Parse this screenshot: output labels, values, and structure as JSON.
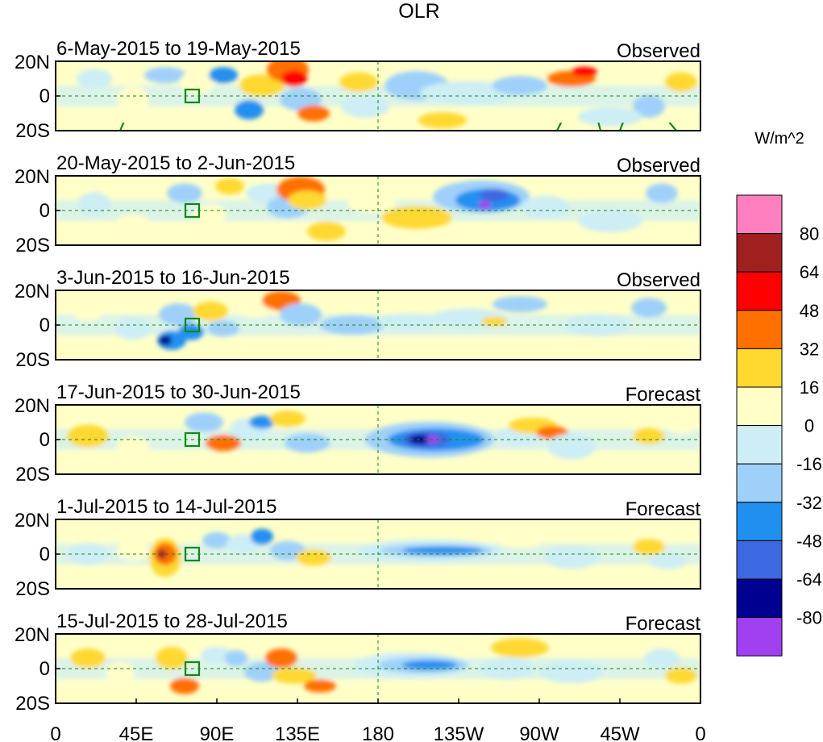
{
  "title": "OLR",
  "units": "W/m^2",
  "panels": [
    {
      "period": "6-May-2015 to 19-May-2015",
      "kind": "Observed"
    },
    {
      "period": "20-May-2015 to 2-Jun-2015",
      "kind": "Observed"
    },
    {
      "period": "3-Jun-2015 to 16-Jun-2015",
      "kind": "Observed"
    },
    {
      "period": "17-Jun-2015 to 30-Jun-2015",
      "kind": "Forecast"
    },
    {
      "period": "1-Jul-2015 to 14-Jul-2015",
      "kind": "Forecast"
    },
    {
      "period": "15-Jul-2015 to 28-Jul-2015",
      "kind": "Forecast"
    }
  ],
  "lat_labels": [
    "20N",
    "0",
    "20S"
  ],
  "lon_labels": [
    "0",
    "45E",
    "90E",
    "135E",
    "180",
    "135W",
    "90W",
    "45W",
    "0"
  ],
  "legend": {
    "labels": [
      "80",
      "64",
      "48",
      "32",
      "16",
      "0",
      "-16",
      "-32",
      "-48",
      "-64",
      "-80"
    ],
    "colors": [
      "#ff7fbf",
      "#a02020",
      "#ff0000",
      "#ff7000",
      "#ffd830",
      "#ffffc8",
      "#cdeef5",
      "#9fd0fa",
      "#2090f0",
      "#3c68e0",
      "#000090",
      "#a040f0"
    ]
  },
  "colors": {
    "land_outline": "#118811",
    "reference_line": "#118811",
    "border": "#000000"
  }
}
